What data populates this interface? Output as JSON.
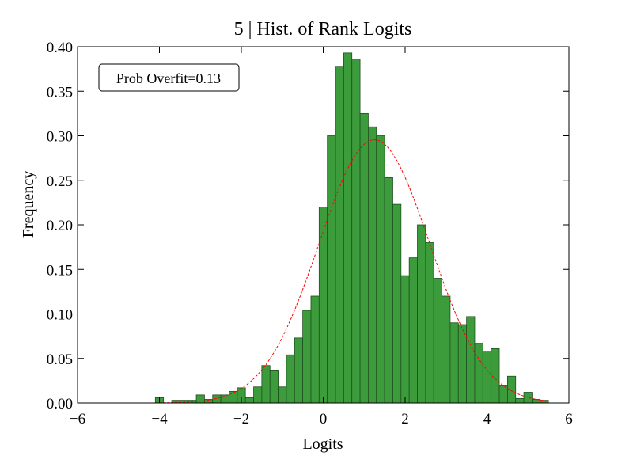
{
  "chart_data": {
    "type": "histogram",
    "title": "5 | Hist. of Rank Logits",
    "x_label": "Logits",
    "y_label": "Frequency",
    "annotation": "Prob Overfit=0.13",
    "bins": [
      -4.1,
      -3.9,
      -3.7,
      -3.5,
      -3.3,
      -3.1,
      -2.9,
      -2.7,
      -2.5,
      -2.3,
      -2.1,
      -1.9,
      -1.7,
      -1.5,
      -1.3,
      -1.1,
      -0.9,
      -0.7,
      -0.5,
      -0.3,
      -0.1,
      0.1,
      0.3,
      0.5,
      0.7,
      0.9,
      1.1,
      1.3,
      1.5,
      1.7,
      1.9,
      2.1,
      2.3,
      2.5,
      2.7,
      2.9,
      3.1,
      3.3,
      3.5,
      3.7,
      3.9,
      4.1,
      4.3,
      4.5,
      4.7,
      4.9,
      5.1,
      5.3,
      5.5
    ],
    "values": [
      0.006,
      0,
      0.003,
      0.003,
      0.003,
      0.009,
      0.004,
      0.009,
      0.009,
      0.013,
      0.017,
      0.006,
      0.018,
      0.042,
      0.037,
      0.018,
      0.054,
      0.073,
      0.104,
      0.12,
      0.22,
      0.3,
      0.378,
      0.393,
      0.386,
      0.325,
      0.31,
      0.3,
      0.253,
      0.223,
      0.143,
      0.163,
      0.2,
      0.18,
      0.14,
      0.12,
      0.09,
      0.088,
      0.097,
      0.067,
      0.058,
      0.061,
      0.02,
      0.03,
      0.005,
      0.012,
      0.004,
      0.003
    ],
    "color": "#3c9c3c",
    "edge_color": "#1f4f1f",
    "fit": {
      "mean": 1.25,
      "std": 1.35,
      "color": "#ff0000"
    },
    "xlim": [
      -6,
      6
    ],
    "xticks": [
      {
        "value": -6,
        "label": "−6"
      },
      {
        "value": -4,
        "label": "−4"
      },
      {
        "value": -2,
        "label": "−2"
      },
      0,
      2,
      4,
      6
    ],
    "ylim": [
      0,
      0.4
    ],
    "yticks": [
      {
        "value": 0,
        "label": "0.00"
      },
      {
        "value": 0.05,
        "label": "0.05"
      },
      {
        "value": 0.1,
        "label": "0.10"
      },
      {
        "value": 0.15,
        "label": "0.15"
      },
      {
        "value": 0.2,
        "label": "0.20"
      },
      {
        "value": 0.25,
        "label": "0.25"
      },
      {
        "value": 0.3,
        "label": "0.30"
      },
      {
        "value": 0.35,
        "label": "0.35"
      },
      {
        "value": 0.4,
        "label": "0.40"
      }
    ]
  }
}
